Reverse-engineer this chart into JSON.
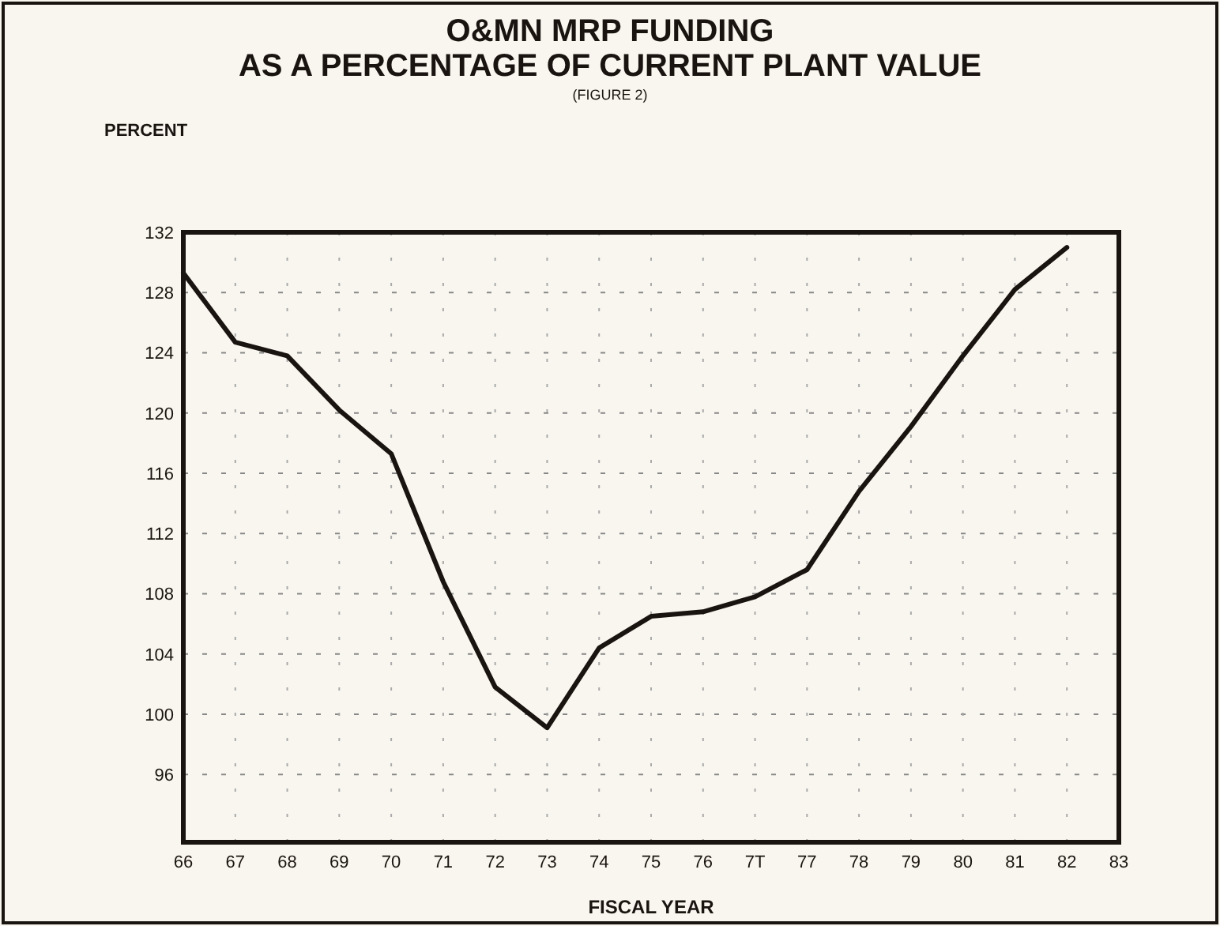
{
  "chart_data": {
    "type": "line",
    "title": "O&MN MRP FUNDING",
    "subtitle": "AS A PERCENTAGE OF CURRENT PLANT VALUE",
    "annotations": [
      "(FIGURE 2)"
    ],
    "ylabel": "PERCENT",
    "xlabel": "FISCAL YEAR",
    "categories": [
      "66",
      "67",
      "68",
      "69",
      "70",
      "71",
      "72",
      "73",
      "74",
      "75",
      "76",
      "7T",
      "77",
      "78",
      "79",
      "80",
      "81",
      "82",
      "83"
    ],
    "series": [
      {
        "color": "#1a1410",
        "values": [
          129.3,
          124.7,
          123.8,
          120.2,
          117.3,
          108.8,
          101.8,
          99.1,
          104.4,
          106.5,
          106.8,
          107.8,
          109.6,
          114.8,
          119.1,
          123.8,
          128.2,
          131,
          null
        ]
      }
    ],
    "ylim": [
      91.5,
      132
    ],
    "yticks": [
      96,
      100,
      104,
      108,
      112,
      116,
      120,
      124,
      128,
      132
    ],
    "grid": true,
    "line_style": "solid",
    "marker": "none"
  }
}
